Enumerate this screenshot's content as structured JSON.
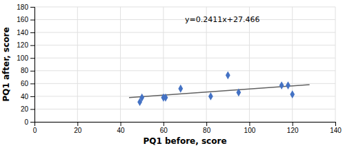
{
  "chart_data": {
    "type": "scatter",
    "xlabel": "PQ1 before, score",
    "ylabel": "PQ1 after, score",
    "annotation": "y=0.2411x+27.466",
    "series": [
      {
        "type": "scatter",
        "marker": "diamond",
        "color": "#4472c4",
        "x": [
          49,
          50,
          60,
          61,
          68,
          82,
          90,
          95,
          115,
          118,
          120
        ],
        "values": [
          31,
          38,
          38,
          38,
          52,
          40,
          73,
          46,
          57,
          57,
          43
        ]
      },
      {
        "type": "line",
        "color": "#606060",
        "x": [
          44,
          128
        ],
        "values": [
          38.0744,
          58.3268
        ]
      }
    ],
    "xlim": [
      0,
      140
    ],
    "ylim": [
      0,
      180
    ],
    "xticks": [
      0,
      20,
      40,
      60,
      80,
      100,
      120,
      140
    ],
    "yticks": [
      0,
      20,
      40,
      60,
      80,
      100,
      120,
      140,
      160,
      180
    ],
    "grid": true
  }
}
